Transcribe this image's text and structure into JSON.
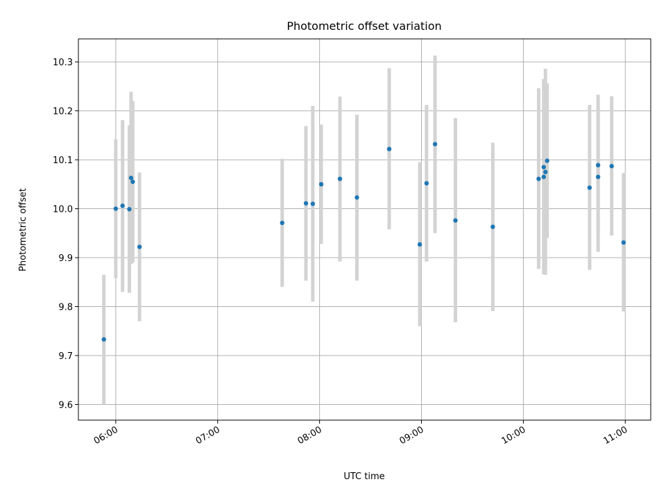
{
  "chart_data": {
    "type": "scatter",
    "title": "Photometric offset variation",
    "xlabel": "UTC time",
    "ylabel": "Photometric offset",
    "x_unit": "UTC time (HH:MM)",
    "xlim": [
      "05:38",
      "11:15"
    ],
    "ylim": [
      9.568,
      10.347
    ],
    "xticks": [
      "06:00",
      "07:00",
      "08:00",
      "09:00",
      "10:00",
      "11:00"
    ],
    "yticks": [
      9.6,
      9.7,
      9.8,
      9.9,
      10.0,
      10.1,
      10.2,
      10.3
    ],
    "ytick_labels": [
      "9.6",
      "9.7",
      "9.8",
      "9.9",
      "10.0",
      "10.1",
      "10.2",
      "10.3"
    ],
    "grid": true,
    "colors": {
      "point": "#1f77b4",
      "errorbar": "#d3d3d3",
      "grid": "#b0b0b0"
    },
    "points": [
      {
        "x": "05:53",
        "y": 9.733,
        "yerr_low": 9.6,
        "yerr_high": 9.865
      },
      {
        "x": "06:00",
        "y": 10.0,
        "yerr_low": 9.858,
        "yerr_high": 10.142
      },
      {
        "x": "06:04",
        "y": 10.006,
        "yerr_low": 9.83,
        "yerr_high": 10.181
      },
      {
        "x": "06:08",
        "y": 9.999,
        "yerr_low": 9.828,
        "yerr_high": 10.17
      },
      {
        "x": "06:09",
        "y": 10.063,
        "yerr_low": 9.887,
        "yerr_high": 10.239
      },
      {
        "x": "06:10",
        "y": 10.055,
        "yerr_low": 9.89,
        "yerr_high": 10.22
      },
      {
        "x": "06:14",
        "y": 9.922,
        "yerr_low": 9.77,
        "yerr_high": 10.074
      },
      {
        "x": "07:38",
        "y": 9.971,
        "yerr_low": 9.84,
        "yerr_high": 10.102
      },
      {
        "x": "07:52",
        "y": 10.011,
        "yerr_low": 9.853,
        "yerr_high": 10.169
      },
      {
        "x": "07:56",
        "y": 10.01,
        "yerr_low": 9.81,
        "yerr_high": 10.21
      },
      {
        "x": "08:01",
        "y": 10.05,
        "yerr_low": 9.928,
        "yerr_high": 10.172
      },
      {
        "x": "08:12",
        "y": 10.061,
        "yerr_low": 9.892,
        "yerr_high": 10.229
      },
      {
        "x": "08:22",
        "y": 10.023,
        "yerr_low": 9.853,
        "yerr_high": 10.192
      },
      {
        "x": "08:41",
        "y": 10.122,
        "yerr_low": 9.958,
        "yerr_high": 10.287
      },
      {
        "x": "08:59",
        "y": 9.927,
        "yerr_low": 9.76,
        "yerr_high": 10.095
      },
      {
        "x": "09:03",
        "y": 10.052,
        "yerr_low": 9.892,
        "yerr_high": 10.212
      },
      {
        "x": "09:08",
        "y": 10.132,
        "yerr_low": 9.95,
        "yerr_high": 10.313
      },
      {
        "x": "09:20",
        "y": 9.976,
        "yerr_low": 9.768,
        "yerr_high": 10.185
      },
      {
        "x": "09:42",
        "y": 9.963,
        "yerr_low": 9.791,
        "yerr_high": 10.135
      },
      {
        "x": "10:09",
        "y": 10.061,
        "yerr_low": 9.877,
        "yerr_high": 10.246
      },
      {
        "x": "10:12",
        "y": 10.085,
        "yerr_low": 9.906,
        "yerr_high": 10.265
      },
      {
        "x": "10:12",
        "y": 10.065,
        "yerr_low": 9.866,
        "yerr_high": 10.264
      },
      {
        "x": "10:13",
        "y": 10.075,
        "yerr_low": 9.865,
        "yerr_high": 10.286
      },
      {
        "x": "10:14",
        "y": 10.098,
        "yerr_low": 9.94,
        "yerr_high": 10.256
      },
      {
        "x": "10:39",
        "y": 10.043,
        "yerr_low": 9.875,
        "yerr_high": 10.212
      },
      {
        "x": "10:44",
        "y": 10.065,
        "yerr_low": 9.912,
        "yerr_high": 10.218
      },
      {
        "x": "10:44",
        "y": 10.089,
        "yerr_low": 9.945,
        "yerr_high": 10.233
      },
      {
        "x": "10:52",
        "y": 10.087,
        "yerr_low": 9.945,
        "yerr_high": 10.23
      },
      {
        "x": "10:59",
        "y": 9.931,
        "yerr_low": 9.79,
        "yerr_high": 10.073
      }
    ]
  }
}
